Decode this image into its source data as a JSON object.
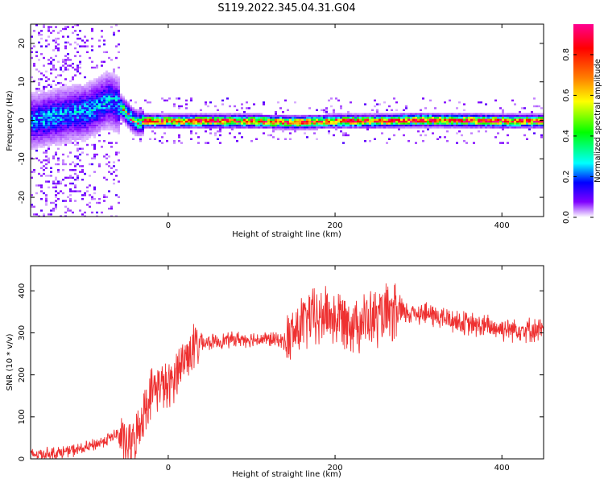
{
  "page_title": "S119.2022.345.04.31.G04",
  "chart_data": [
    {
      "type": "heatmap",
      "xlabel": "Height of straight line (km)",
      "ylabel": "Frequency (Hz)",
      "xlim": [
        -165,
        450
      ],
      "ylim": [
        -25,
        25
      ],
      "x_ticks": [
        0,
        200,
        400
      ],
      "y_ticks": [
        -20,
        -10,
        0,
        10,
        20
      ],
      "grid": false,
      "colorbar": {
        "label": "Normalized spectral amplitude",
        "range": [
          0.0,
          0.95
        ],
        "ticks": [
          "0.0",
          "0.2",
          "0.4",
          "0.6",
          "0.8"
        ],
        "tick_values": [
          0.0,
          0.2,
          0.4,
          0.6,
          0.8
        ],
        "colormap": [
          "#ff0090",
          "#ff0000",
          "#ff8000",
          "#ffff00",
          "#00ff00",
          "#00ffff",
          "#0000ff",
          "#8000ff",
          "#ffffff"
        ]
      },
      "ridge": {
        "x": [
          -165,
          -140,
          -120,
          -100,
          -85,
          -75,
          -65,
          -55,
          -45,
          -38,
          -30,
          0,
          50,
          100,
          150,
          200,
          250,
          300,
          350,
          400,
          450
        ],
        "y": [
          0,
          1,
          2,
          2.5,
          4,
          5.5,
          5,
          3,
          0.5,
          -0.5,
          0,
          0,
          0,
          0,
          -0.3,
          0,
          0,
          0.3,
          0.2,
          0,
          0
        ]
      }
    },
    {
      "type": "line",
      "xlabel": "Height of straight line (km)",
      "ylabel": "SNR (10 * v/v)",
      "xlim": [
        -165,
        450
      ],
      "ylim": [
        0,
        460
      ],
      "x_ticks": [
        0,
        200,
        400
      ],
      "y_ticks": [
        0,
        100,
        200,
        300,
        400
      ],
      "grid": false,
      "series": [
        {
          "color": "#ee3030",
          "x": [
            -165,
            -130,
            -100,
            -80,
            -60,
            -50,
            -40,
            -30,
            -20,
            -10,
            0,
            10,
            20,
            30,
            40,
            60,
            80,
            100,
            120,
            140,
            150,
            160,
            170,
            180,
            190,
            200,
            210,
            220,
            240,
            260,
            280,
            300,
            320,
            340,
            360,
            380,
            400,
            420,
            450
          ],
          "values": [
            10,
            15,
            25,
            40,
            60,
            30,
            40,
            110,
            160,
            180,
            165,
            210,
            240,
            265,
            275,
            280,
            285,
            285,
            285,
            280,
            295,
            320,
            340,
            330,
            350,
            330,
            340,
            325,
            330,
            340,
            345,
            350,
            340,
            330,
            320,
            315,
            310,
            310,
            305
          ]
        }
      ]
    }
  ]
}
